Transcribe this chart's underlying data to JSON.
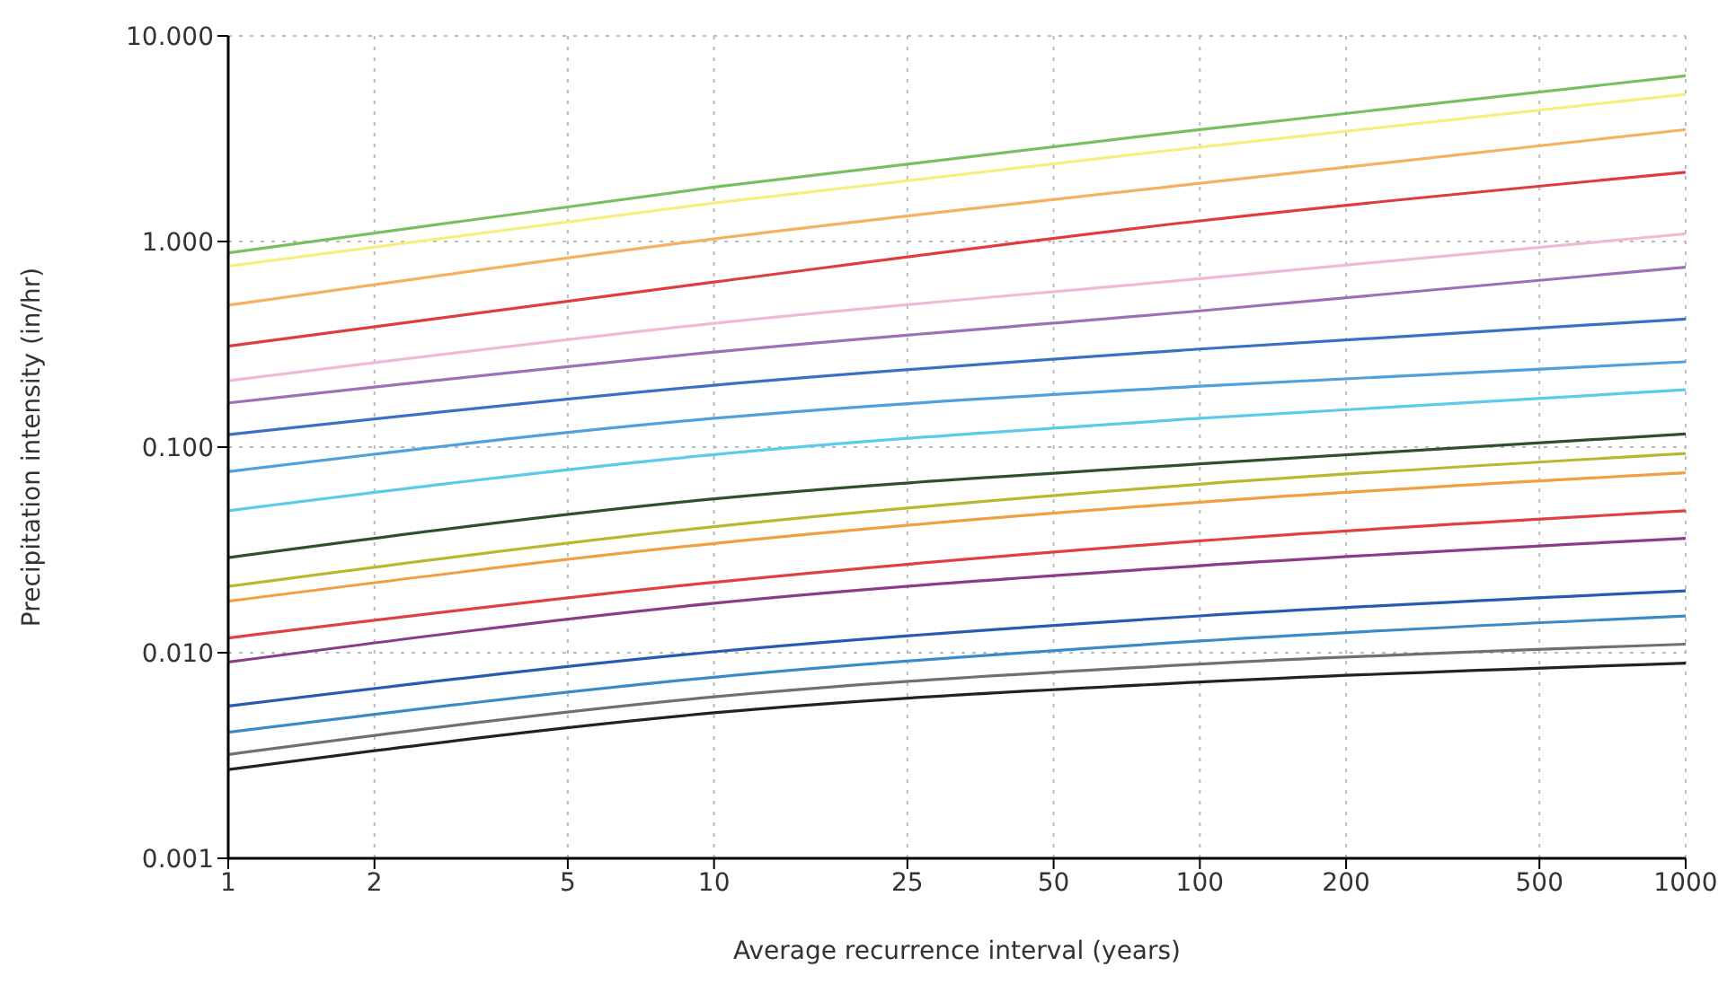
{
  "chart_data": {
    "type": "line",
    "xlabel": "Average recurrence interval (years)",
    "ylabel": "Precipitation intensity (in/hr)",
    "log": "xy",
    "grid": true,
    "xlim": [
      1,
      1000
    ],
    "xticks": [
      1,
      2,
      5,
      10,
      25,
      50,
      100,
      200,
      500,
      1000
    ],
    "ylim": [
      0.001,
      10
    ],
    "yticks": [
      {
        "value": 0.001,
        "label": "0.001"
      },
      {
        "value": 0.01,
        "label": "0.010"
      },
      {
        "value": 0.1,
        "label": "0.100"
      },
      {
        "value": 1,
        "label": "1.000"
      },
      {
        "value": 10,
        "label": "10.000"
      }
    ],
    "x": [
      1,
      10,
      100,
      1000
    ],
    "series": [
      {
        "color": "#77c060",
        "values": [
          0.88,
          1.84,
          3.5,
          6.4
        ]
      },
      {
        "color": "#f5ee80",
        "values": [
          0.76,
          1.54,
          2.88,
          5.2
        ]
      },
      {
        "color": "#f5b060",
        "values": [
          0.49,
          1.03,
          1.92,
          3.5
        ]
      },
      {
        "color": "#e03c3c",
        "values": [
          0.31,
          0.635,
          1.26,
          2.17
        ]
      },
      {
        "color": "#f2b8d8",
        "values": [
          0.21,
          0.4,
          0.66,
          1.09
        ]
      },
      {
        "color": "#9c6fb8",
        "values": [
          0.164,
          0.29,
          0.46,
          0.75
        ]
      },
      {
        "color": "#3a6fc4",
        "values": [
          0.115,
          0.2,
          0.3,
          0.42
        ]
      },
      {
        "color": "#4fa0dc",
        "values": [
          0.076,
          0.138,
          0.198,
          0.26
        ]
      },
      {
        "color": "#5ccbe8",
        "values": [
          0.049,
          0.092,
          0.138,
          0.19
        ]
      },
      {
        "color": "#2f4f2f",
        "values": [
          0.029,
          0.056,
          0.083,
          0.116
        ]
      },
      {
        "color": "#b8b830",
        "values": [
          0.021,
          0.041,
          0.066,
          0.093
        ]
      },
      {
        "color": "#f0a040",
        "values": [
          0.0178,
          0.034,
          0.054,
          0.075
        ]
      },
      {
        "color": "#e04040",
        "values": [
          0.0118,
          0.022,
          0.035,
          0.049
        ]
      },
      {
        "color": "#8a3c8a",
        "values": [
          0.009,
          0.0174,
          0.0265,
          0.036
        ]
      },
      {
        "color": "#2a5ab0",
        "values": [
          0.0055,
          0.0101,
          0.0151,
          0.02
        ]
      },
      {
        "color": "#3a8ac8",
        "values": [
          0.0041,
          0.0076,
          0.0114,
          0.0151
        ]
      },
      {
        "color": "#707070",
        "values": [
          0.0032,
          0.0061,
          0.0088,
          0.011
        ]
      },
      {
        "color": "#222222",
        "values": [
          0.0027,
          0.0051,
          0.0072,
          0.0089
        ]
      }
    ]
  }
}
